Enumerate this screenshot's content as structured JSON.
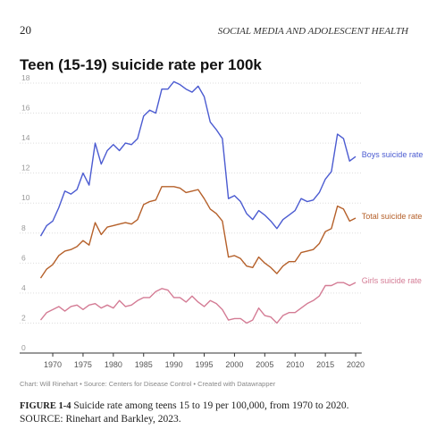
{
  "header": {
    "page_number": "20",
    "running_title": "SOCIAL MEDIA AND ADOLESCENT HEALTH"
  },
  "chart_data": {
    "type": "line",
    "title": "Teen (15-19) suicide rate per 100k",
    "x": [
      1968,
      1969,
      1970,
      1971,
      1972,
      1973,
      1974,
      1975,
      1976,
      1977,
      1978,
      1979,
      1980,
      1981,
      1982,
      1983,
      1984,
      1985,
      1986,
      1987,
      1988,
      1989,
      1990,
      1991,
      1992,
      1993,
      1994,
      1995,
      1996,
      1997,
      1998,
      1999,
      2000,
      2001,
      2002,
      2003,
      2004,
      2005,
      2006,
      2007,
      2008,
      2009,
      2010,
      2011,
      2012,
      2013,
      2014,
      2015,
      2016,
      2017,
      2018,
      2019,
      2020
    ],
    "series": [
      {
        "name": "Boys suicide rate",
        "color": "#4b5bd1",
        "values": [
          7.8,
          8.5,
          8.8,
          9.7,
          10.8,
          10.6,
          10.9,
          12.0,
          11.2,
          14.0,
          12.6,
          13.5,
          13.9,
          13.5,
          14.0,
          13.9,
          14.3,
          15.8,
          16.2,
          16.0,
          17.6,
          17.6,
          18.1,
          17.9,
          17.6,
          17.4,
          17.8,
          17.1,
          15.4,
          14.9,
          14.3,
          10.3,
          10.5,
          10.1,
          9.3,
          8.9,
          9.5,
          9.2,
          8.8,
          8.3,
          8.9,
          9.2,
          9.5,
          10.3,
          10.1,
          10.2,
          10.7,
          11.6,
          12.1,
          14.6,
          14.3,
          12.8,
          13.1
        ]
      },
      {
        "name": "Total suicide rate",
        "color": "#b5602a",
        "values": [
          5.0,
          5.6,
          5.9,
          6.5,
          6.8,
          6.9,
          7.1,
          7.5,
          7.2,
          8.7,
          7.9,
          8.4,
          8.5,
          8.6,
          8.7,
          8.6,
          8.9,
          9.9,
          10.1,
          10.2,
          11.1,
          11.1,
          11.1,
          11.0,
          10.7,
          10.8,
          10.9,
          10.3,
          9.6,
          9.3,
          8.8,
          6.4,
          6.5,
          6.3,
          5.8,
          5.7,
          6.4,
          6.0,
          5.7,
          5.3,
          5.8,
          6.1,
          6.1,
          6.7,
          6.8,
          6.9,
          7.3,
          8.1,
          8.3,
          9.8,
          9.6,
          8.8,
          9.0
        ]
      },
      {
        "name": "Girls suicide rate",
        "color": "#d47c95",
        "values": [
          2.2,
          2.7,
          2.9,
          3.1,
          2.8,
          3.1,
          3.2,
          2.9,
          3.2,
          3.3,
          3.0,
          3.2,
          3.0,
          3.5,
          3.1,
          3.2,
          3.5,
          3.7,
          3.7,
          4.1,
          4.3,
          4.2,
          3.7,
          3.7,
          3.4,
          3.8,
          3.4,
          3.1,
          3.5,
          3.3,
          2.9,
          2.2,
          2.3,
          2.3,
          2.0,
          2.2,
          3.0,
          2.5,
          2.4,
          2.0,
          2.5,
          2.7,
          2.7,
          3.0,
          3.3,
          3.5,
          3.8,
          4.5,
          4.5,
          4.7,
          4.7,
          4.5,
          4.7
        ]
      }
    ],
    "xlim": [
      1967,
      2021
    ],
    "xticks": [
      1970,
      1975,
      1980,
      1985,
      1990,
      1995,
      2000,
      2005,
      2010,
      2015,
      2020
    ],
    "ylim": [
      0,
      18
    ],
    "yticks": [
      0,
      2,
      4,
      6,
      8,
      10,
      12,
      14,
      16,
      18
    ],
    "grid": true,
    "credit": "Chart: Will Rinehart • Source: Centers for Disease Control • Created with Datawrapper"
  },
  "caption": {
    "label": "FIGURE 1-4",
    "text": "Suicide rate among teens 15 to 19 per 100,000, from 1970 to 2020.",
    "source": "SOURCE: Rinehart and Barkley, 2023."
  }
}
